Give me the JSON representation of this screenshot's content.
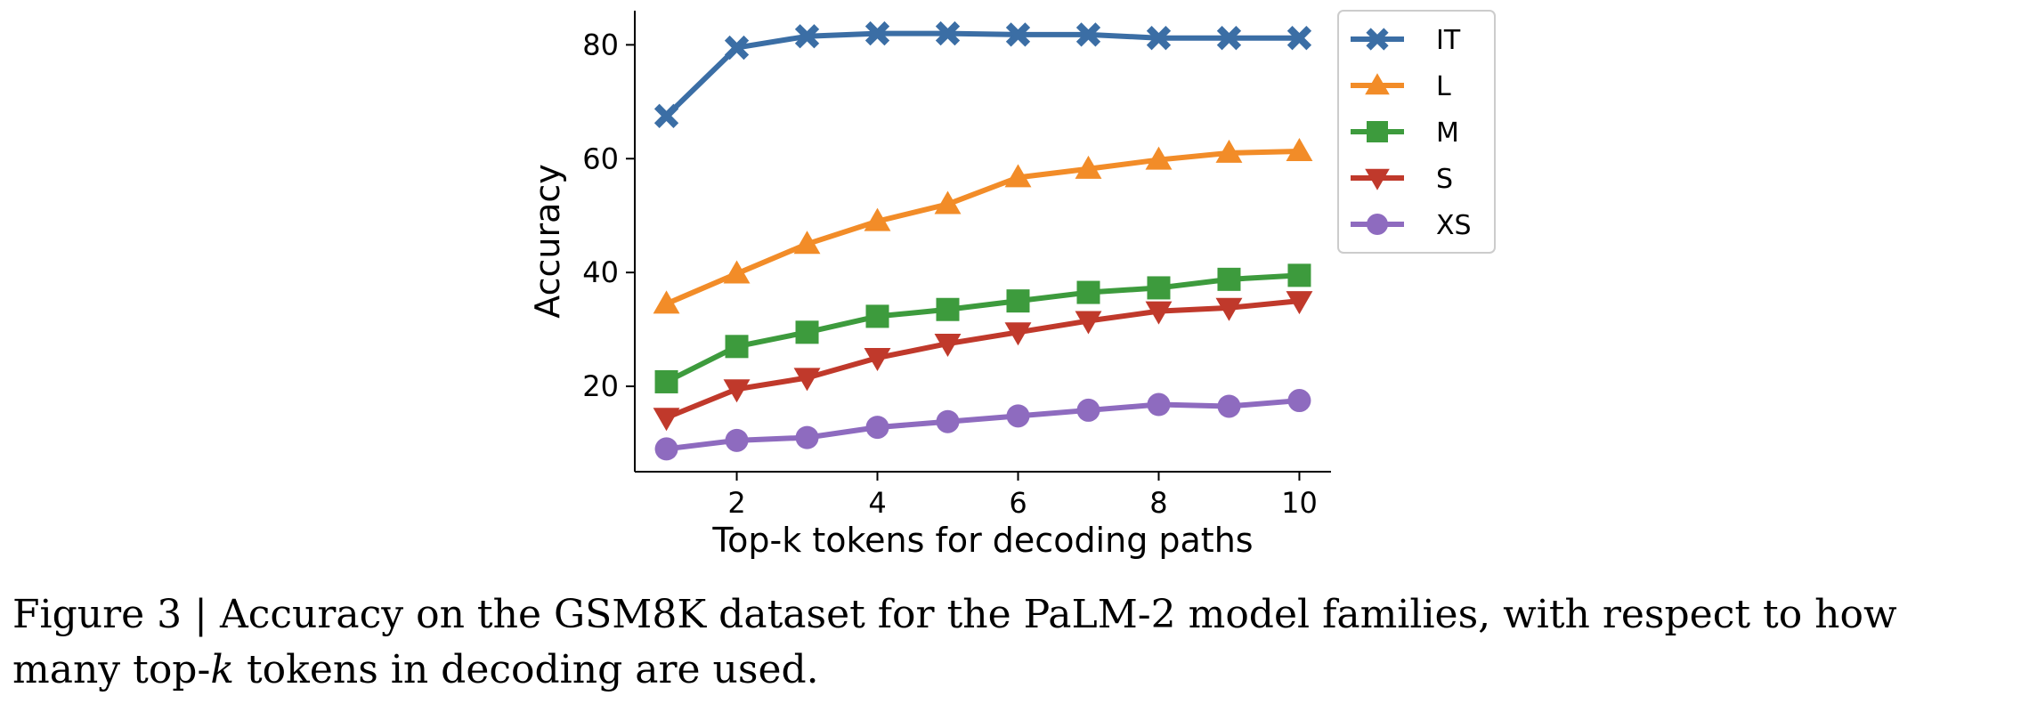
{
  "chart_data": {
    "type": "line",
    "title": "",
    "xlabel": "Top-k tokens for decoding paths",
    "ylabel": "Accuracy",
    "x": [
      1,
      2,
      3,
      4,
      5,
      6,
      7,
      8,
      9,
      10
    ],
    "xticks": [
      2,
      4,
      6,
      8,
      10
    ],
    "yticks": [
      20,
      40,
      60,
      80
    ],
    "xlim": [
      0.55,
      10.45
    ],
    "ylim": [
      5,
      86
    ],
    "grid": false,
    "legend_position": "top-right",
    "series": [
      {
        "name": "IT",
        "marker": "x",
        "color": "#3b6ea5",
        "values": [
          67.5,
          79.5,
          81.5,
          82,
          82,
          81.8,
          81.8,
          81.2,
          81.2,
          81.2
        ]
      },
      {
        "name": "L",
        "marker": "triangle-up",
        "color": "#f28c28",
        "values": [
          34.5,
          39.8,
          45,
          49,
          52,
          56.7,
          58.2,
          59.8,
          61,
          61.3
        ]
      },
      {
        "name": "M",
        "marker": "square",
        "color": "#3d9b3d",
        "values": [
          20.8,
          27,
          29.5,
          32.3,
          33.5,
          35,
          36.5,
          37.3,
          38.8,
          39.5
        ]
      },
      {
        "name": "S",
        "marker": "triangle-down",
        "color": "#c0392b",
        "values": [
          14.5,
          19.5,
          21.5,
          25,
          27.5,
          29.5,
          31.5,
          33.2,
          33.8,
          35
        ]
      },
      {
        "name": "XS",
        "marker": "circle",
        "color": "#8e6bbf",
        "values": [
          9,
          10.5,
          11,
          12.8,
          13.8,
          14.8,
          15.8,
          16.8,
          16.5,
          17.5
        ]
      }
    ]
  },
  "caption": {
    "label": "Figure 3",
    "separator": " | ",
    "text_before": "Accuracy on the GSM8K dataset for the PaLM-2 model families, with respect to how many top-",
    "k": "k",
    "text_after": " tokens in decoding are used."
  }
}
